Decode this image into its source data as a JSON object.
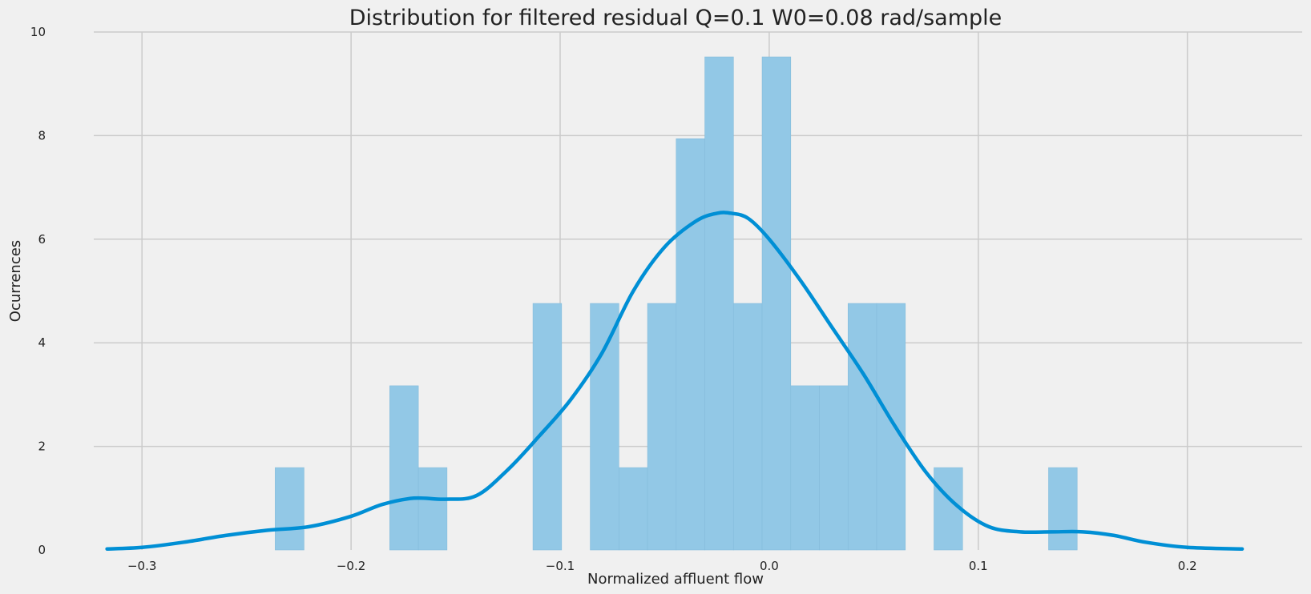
{
  "chart_data": {
    "type": "bar",
    "title": "Distribution for filtered residual Q=0.1 W0=0.08 rad/sample",
    "xlabel": "Normalized affluent flow",
    "ylabel": "Ocurrences",
    "xlim": [
      -0.32,
      0.23
    ],
    "ylim": [
      0,
      10
    ],
    "grid": true,
    "x_ticks": [
      -0.3,
      -0.2,
      -0.1,
      0.0,
      0.1,
      0.2
    ],
    "x_tick_labels": [
      "−0.3",
      "−0.2",
      "−0.1",
      "0.0",
      "0.1",
      "0.2"
    ],
    "y_ticks": [
      0,
      2,
      4,
      6,
      8,
      10
    ],
    "y_tick_labels": [
      "0",
      "2",
      "4",
      "6",
      "8",
      "10"
    ],
    "bar_color": "#92c8e6",
    "line_color": "#008fd5",
    "bins": [
      {
        "x0": -0.2363,
        "x1": -0.2225,
        "y": 1.59
      },
      {
        "x0": -0.1815,
        "x1": -0.1678,
        "y": 3.17
      },
      {
        "x0": -0.1678,
        "x1": -0.1541,
        "y": 1.59
      },
      {
        "x0": -0.113,
        "x1": -0.0993,
        "y": 4.76
      },
      {
        "x0": -0.0856,
        "x1": -0.0719,
        "y": 4.76
      },
      {
        "x0": -0.0719,
        "x1": -0.0582,
        "y": 1.59
      },
      {
        "x0": -0.0582,
        "x1": -0.0445,
        "y": 4.76
      },
      {
        "x0": -0.0445,
        "x1": -0.0308,
        "y": 7.94
      },
      {
        "x0": -0.0308,
        "x1": -0.0171,
        "y": 9.52
      },
      {
        "x0": -0.0171,
        "x1": -0.0034,
        "y": 4.76
      },
      {
        "x0": -0.0034,
        "x1": 0.0103,
        "y": 9.52
      },
      {
        "x0": 0.0103,
        "x1": 0.024,
        "y": 3.17
      },
      {
        "x0": 0.024,
        "x1": 0.0377,
        "y": 3.17
      },
      {
        "x0": 0.0377,
        "x1": 0.0514,
        "y": 4.76
      },
      {
        "x0": 0.0514,
        "x1": 0.0651,
        "y": 4.76
      },
      {
        "x0": 0.0788,
        "x1": 0.0925,
        "y": 1.59
      },
      {
        "x0": 0.1336,
        "x1": 0.1473,
        "y": 1.59
      }
    ],
    "kde": {
      "x": [
        -0.3167,
        -0.3,
        -0.28,
        -0.26,
        -0.24,
        -0.22,
        -0.2,
        -0.185,
        -0.17,
        -0.155,
        -0.14,
        -0.125,
        -0.11,
        -0.095,
        -0.08,
        -0.065,
        -0.05,
        -0.035,
        -0.025,
        -0.018,
        -0.01,
        0.0,
        0.015,
        0.03,
        0.045,
        0.06,
        0.075,
        0.09,
        0.105,
        0.12,
        0.135,
        0.15,
        0.165,
        0.18,
        0.2,
        0.2262
      ],
      "y": [
        0.02,
        0.05,
        0.15,
        0.28,
        0.38,
        0.45,
        0.65,
        0.88,
        1.0,
        0.98,
        1.05,
        1.55,
        2.2,
        2.9,
        3.8,
        5.0,
        5.85,
        6.35,
        6.5,
        6.5,
        6.4,
        6.0,
        5.2,
        4.3,
        3.4,
        2.4,
        1.5,
        0.85,
        0.45,
        0.35,
        0.35,
        0.35,
        0.28,
        0.15,
        0.05,
        0.02
      ]
    }
  }
}
